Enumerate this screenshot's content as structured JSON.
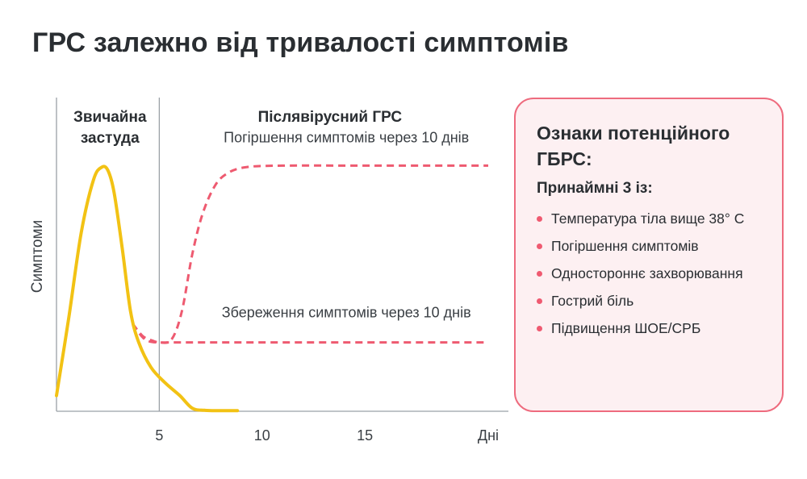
{
  "title": "ГРС залежно від тривалості симптомів",
  "chart_data": {
    "type": "line",
    "ylabel": "Симптоми",
    "xlabel": "Дні",
    "xlim": [
      0,
      21
    ],
    "ylim": [
      0,
      1
    ],
    "x_ticks": [
      {
        "value": 5,
        "label": "5"
      },
      {
        "value": 10,
        "label": "10"
      },
      {
        "value": 15,
        "label": "15"
      },
      {
        "value": 21,
        "label": "Дні"
      }
    ],
    "divider_x": 5,
    "grid": false,
    "regions": [
      {
        "label_lines": [
          "Звичайна",
          "застуда"
        ],
        "x_center": 2.6
      },
      {
        "label_lines": [
          "Післявірусний ГРС"
        ],
        "x_center": 13.3
      }
    ],
    "series": [
      {
        "key": "common_cold",
        "style": "solid",
        "color": "#f2c214",
        "x": [
          0,
          0.6,
          1.2,
          1.8,
          2.2,
          2.5,
          2.8,
          3.2,
          3.6,
          4.0,
          4.6,
          5.3,
          6.0,
          6.6,
          7.2,
          8.0,
          8.8
        ],
        "y": [
          0.05,
          0.3,
          0.57,
          0.74,
          0.78,
          0.77,
          0.7,
          0.52,
          0.32,
          0.22,
          0.14,
          0.09,
          0.05,
          0.01,
          0.003,
          0.002,
          0.002
        ]
      },
      {
        "key": "worsening",
        "name": "Погіршення симптомів через 10 днів",
        "style": "dashed",
        "color": "#ee5a70",
        "x": [
          3.7,
          4.3,
          5.0,
          5.6,
          6.1,
          6.6,
          7.1,
          7.7,
          8.3,
          9.2,
          11,
          15,
          21
        ],
        "y": [
          0.28,
          0.23,
          0.22,
          0.23,
          0.32,
          0.5,
          0.63,
          0.72,
          0.76,
          0.78,
          0.785,
          0.785,
          0.785
        ]
      },
      {
        "key": "persistent",
        "name": "Збереження симптомів через 10 днів",
        "style": "dashed",
        "color": "#ee5a70",
        "x": [
          3.7,
          4.2,
          4.7,
          5.0,
          5.6,
          7,
          10,
          15,
          21
        ],
        "y": [
          0.28,
          0.24,
          0.225,
          0.22,
          0.22,
          0.22,
          0.22,
          0.22,
          0.22
        ]
      }
    ],
    "annotations": [
      {
        "text": "Погіршення симптомів через 10 днів",
        "x": 14.1,
        "y": 0.86
      },
      {
        "text": "Збереження симптомів через 10 днів",
        "x": 14.1,
        "y": 0.3
      }
    ]
  },
  "panel": {
    "title": "Ознаки потенційного ГБРС:",
    "subtitle": "Принаймні 3 із:",
    "items": [
      "Температура тіла вище 38° С",
      "Погіршення симптомів",
      "Одностороннє захворювання",
      "Гострий біль",
      "Підвищення ШОЕ/СРБ"
    ],
    "accent_color": "#ee6b7e"
  }
}
